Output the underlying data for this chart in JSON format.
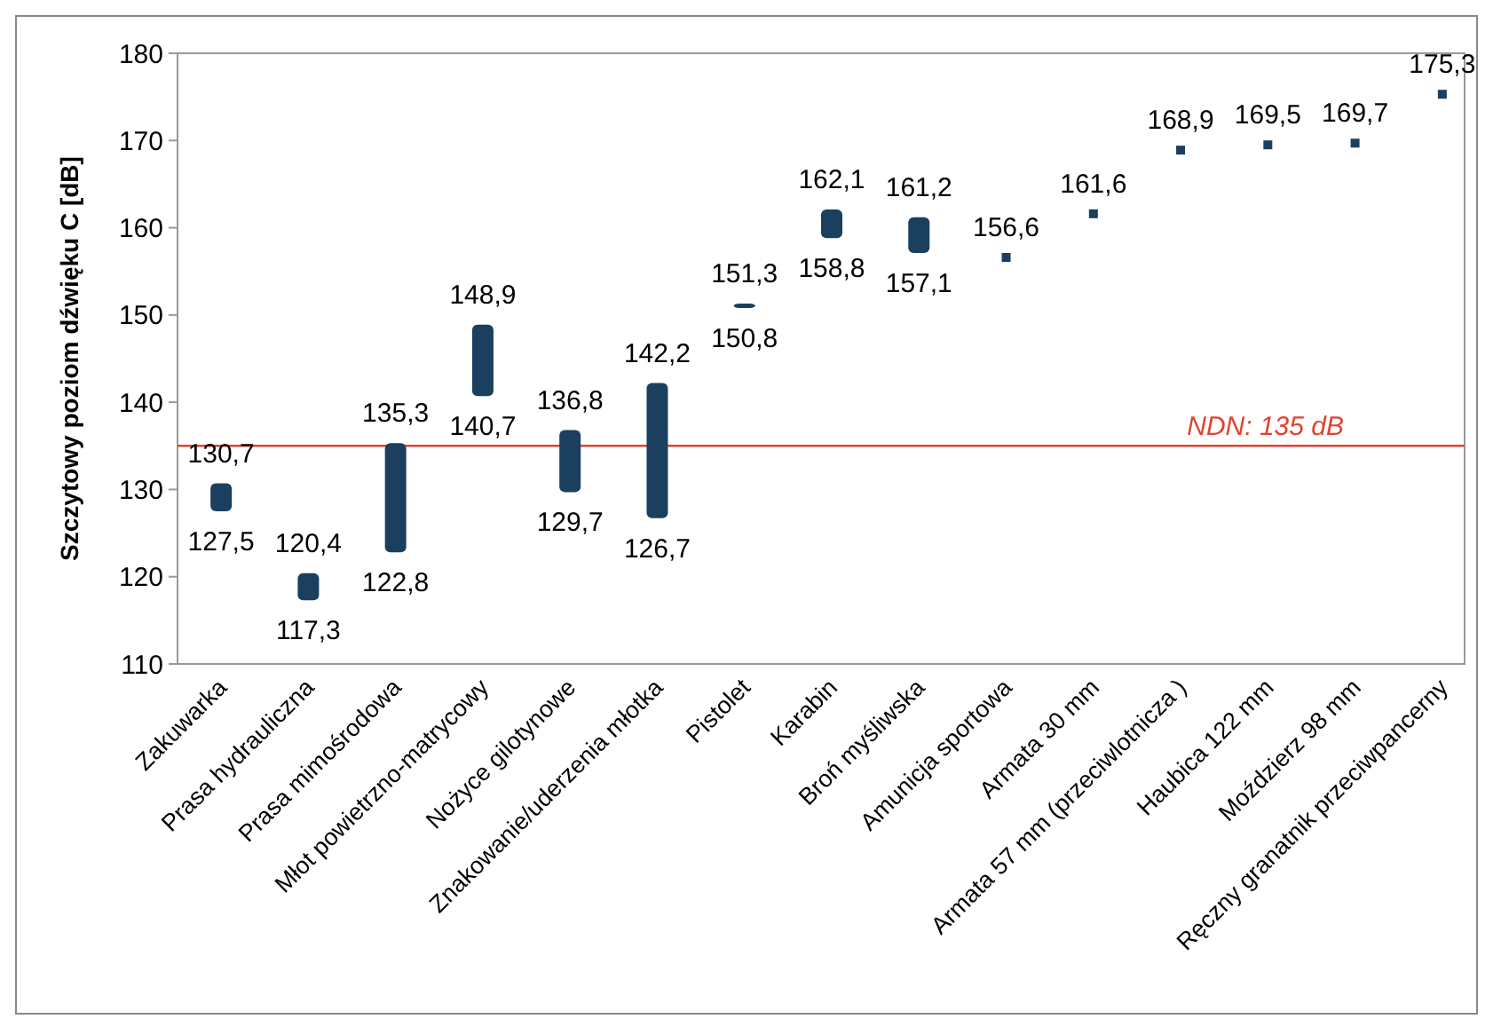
{
  "chart_data": {
    "type": "bar",
    "ylabel": "Szczytowy poziom dźwięku C [dB]",
    "categories": [
      "Zakuwarka",
      "Prasa hydrauliczna",
      "Prasa mimośrodowa",
      "Młot powietrzno-matrycowy",
      "Nożyce gilotynowe",
      "Znakowanie/uderzenia młotka",
      "Pistolet",
      "Karabin",
      "Broń myśliwska",
      "Amunicja sportowa",
      "Armata 30 mm",
      "Armata 57 mm (przeciwlotnicza )",
      "Haubica 122 mm",
      "Moździerz 98 mm",
      "Ręczny granatnik przeciwpancerny"
    ],
    "series": [
      {
        "color": "#1b3f5e",
        "base": [
          127.5,
          117.3,
          122.8,
          140.7,
          129.7,
          126.7,
          150.8,
          158.8,
          157.1,
          null,
          null,
          null,
          null,
          null,
          null
        ],
        "values": [
          3.2,
          3.1,
          12.5,
          8.2,
          7.1,
          15.5,
          0.5,
          3.3,
          4.1,
          null,
          null,
          null,
          null,
          null,
          null
        ]
      },
      {
        "type": "scatter",
        "color": "#1b3f5e",
        "marker": "square",
        "x": [
          "Amunicja sportowa",
          "Armata 30 mm",
          "Armata 57 mm (przeciwlotnicza )",
          "Haubica 122 mm",
          "Moździerz 98 mm",
          "Ręczny granatnik przeciwpancerny"
        ],
        "values": [
          156.6,
          161.6,
          168.9,
          169.5,
          169.7,
          175.3
        ]
      }
    ],
    "ylim": [
      110,
      180
    ],
    "yticks": [
      110,
      120,
      130,
      140,
      150,
      160,
      170,
      180
    ],
    "grid": false,
    "ref_lines": [
      {
        "axis": "y",
        "value": 135,
        "label": "NDN: 135 dB",
        "color": "#e0432f"
      }
    ],
    "annotations": [
      {
        "text": "130,7",
        "x": "Zakuwarka",
        "y": 130.7
      },
      {
        "text": "127,5",
        "x": "Zakuwarka",
        "y": 127.5
      },
      {
        "text": "120,4",
        "x": "Prasa hydrauliczna",
        "y": 120.4
      },
      {
        "text": "117,3",
        "x": "Prasa hydrauliczna",
        "y": 117.3
      },
      {
        "text": "135,3",
        "x": "Prasa mimośrodowa",
        "y": 135.3
      },
      {
        "text": "122,8",
        "x": "Prasa mimośrodowa",
        "y": 122.8
      },
      {
        "text": "148,9",
        "x": "Młot powietrzno-matrycowy",
        "y": 148.9
      },
      {
        "text": "140,7",
        "x": "Młot powietrzno-matrycowy",
        "y": 140.7
      },
      {
        "text": "136,8",
        "x": "Nożyce gilotynowe",
        "y": 136.8
      },
      {
        "text": "129,7",
        "x": "Nożyce gilotynowe",
        "y": 129.7
      },
      {
        "text": "142,2",
        "x": "Znakowanie/uderzenia młotka",
        "y": 142.2
      },
      {
        "text": "126,7",
        "x": "Znakowanie/uderzenia młotka",
        "y": 126.7
      },
      {
        "text": "151,3",
        "x": "Pistolet",
        "y": 151.3
      },
      {
        "text": "150,8",
        "x": "Pistolet",
        "y": 150.8
      },
      {
        "text": "162,1",
        "x": "Karabin",
        "y": 162.1
      },
      {
        "text": "158,8",
        "x": "Karabin",
        "y": 158.8
      },
      {
        "text": "161,2",
        "x": "Broń myśliwska",
        "y": 161.2
      },
      {
        "text": "157,1",
        "x": "Broń myśliwska",
        "y": 157.1
      },
      {
        "text": "156,6",
        "x": "Amunicja sportowa",
        "y": 156.6
      },
      {
        "text": "161,6",
        "x": "Armata 30 mm",
        "y": 161.6
      },
      {
        "text": "168,9",
        "x": "Armata 57 mm (przeciwlotnicza )",
        "y": 168.9
      },
      {
        "text": "169,5",
        "x": "Haubica 122 mm",
        "y": 169.5
      },
      {
        "text": "169,7",
        "x": "Moździerz 98 mm",
        "y": 169.7
      },
      {
        "text": "175,3",
        "x": "Ręczny granatnik przeciwpancerny",
        "y": 175.3
      }
    ]
  }
}
